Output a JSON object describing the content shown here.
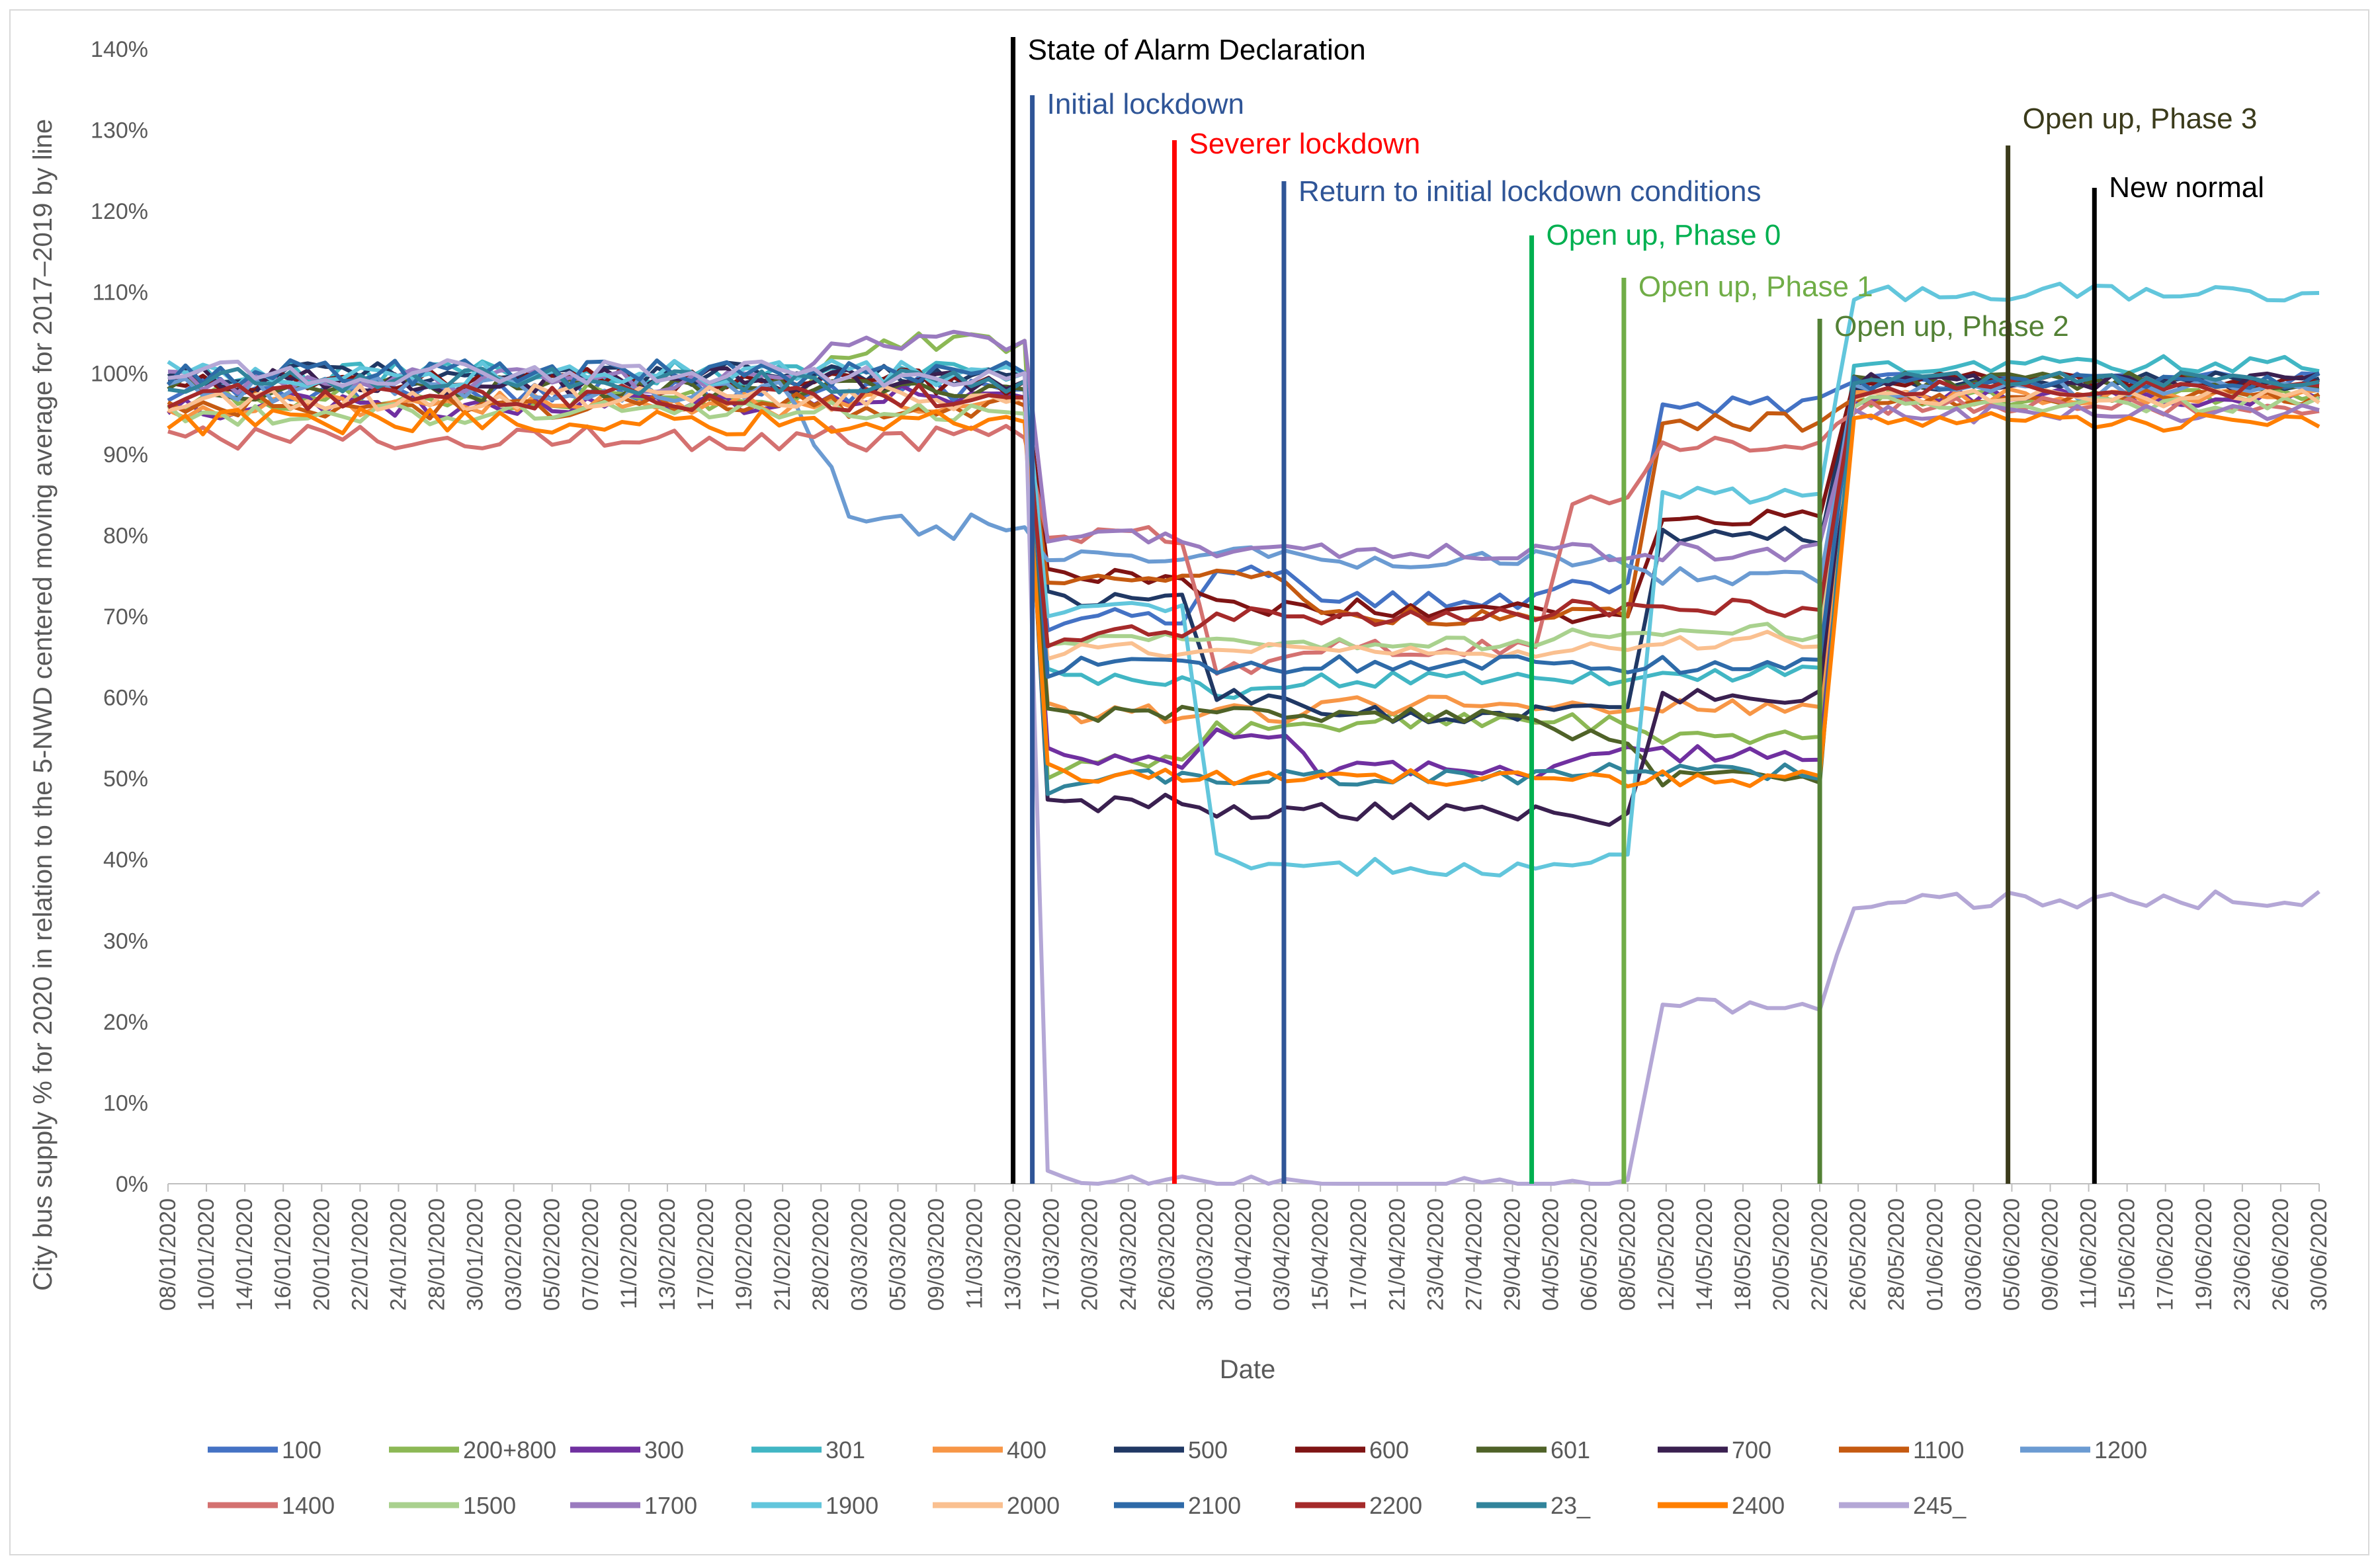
{
  "chart_data": {
    "type": "line",
    "title": "",
    "xlabel": "Date",
    "ylabel": "City bus supply % for 2020 in relation to the 5-NWD centered moving average for 2017–2019 by line",
    "ylim": [
      0,
      140
    ],
    "yticks": [
      "0%",
      "10%",
      "20%",
      "30%",
      "40%",
      "50%",
      "60%",
      "70%",
      "80%",
      "90%",
      "100%",
      "110%",
      "120%",
      "130%",
      "140%"
    ],
    "x_tick_labels": [
      "08/01/2020",
      "10/01/2020",
      "14/01/2020",
      "16/01/2020",
      "20/01/2020",
      "22/01/2020",
      "24/01/2020",
      "28/01/2020",
      "30/01/2020",
      "03/02/2020",
      "05/02/2020",
      "07/02/2020",
      "11/02/2020",
      "13/02/2020",
      "17/02/2020",
      "19/02/2020",
      "21/02/2020",
      "28/02/2020",
      "03/03/2020",
      "05/03/2020",
      "09/03/2020",
      "11/03/2020",
      "13/03/2020",
      "17/03/2020",
      "20/03/2020",
      "24/03/2020",
      "26/03/2020",
      "30/03/2020",
      "01/04/2020",
      "03/04/2020",
      "15/04/2020",
      "17/04/2020",
      "21/04/2020",
      "23/04/2020",
      "27/04/2020",
      "29/04/2020",
      "04/05/2020",
      "06/05/2020",
      "08/05/2020",
      "12/05/2020",
      "14/05/2020",
      "18/05/2020",
      "20/05/2020",
      "22/05/2020",
      "26/05/2020",
      "28/05/2020",
      "01/06/2020",
      "03/06/2020",
      "05/06/2020",
      "09/06/2020",
      "11/06/2020",
      "15/06/2020",
      "17/06/2020",
      "19/06/2020",
      "23/06/2020",
      "26/06/2020",
      "30/06/2020"
    ],
    "grid": false,
    "legend_position": "bottom",
    "events": [
      {
        "label": "State of Alarm Declaration",
        "x_index": 22,
        "color": "#000000"
      },
      {
        "label": "Initial lockdown",
        "x_index": 22.5,
        "color": "#2f5597"
      },
      {
        "label": "Severer lockdown",
        "x_index": 26.2,
        "color": "#ff0000"
      },
      {
        "label": "Return to initial lockdown conditions",
        "x_index": 29.05,
        "color": "#2f5597"
      },
      {
        "label": "Open up, Phase 0",
        "x_index": 35.5,
        "color": "#00b050"
      },
      {
        "label": "Open up, Phase 1",
        "x_index": 37.9,
        "color": "#70ad47"
      },
      {
        "label": "Open up, Phase 2",
        "x_index": 43,
        "color": "#538135"
      },
      {
        "label": "Open up, Phase 3",
        "x_index": 47.9,
        "color": "#3b3b1b"
      },
      {
        "label": "New normal",
        "x_index": 50.15,
        "color": "#000000"
      }
    ],
    "series": [
      {
        "name": "100",
        "color": "#4472c4",
        "segments": [
          98,
          98,
          70,
          76,
          72,
          74,
          96,
          99
        ]
      },
      {
        "name": "200+800",
        "color": "#8cb855",
        "segments": [
          97,
          104,
          52,
          56,
          57,
          57,
          55,
          97
        ]
      },
      {
        "name": "300",
        "color": "#7030a0",
        "segments": [
          96,
          97,
          52,
          56,
          51,
          53,
          53,
          97
        ]
      },
      {
        "name": "301",
        "color": "#41b6c4",
        "segments": [
          100,
          100,
          62,
          61,
          62,
          62,
          63,
          101
        ]
      },
      {
        "name": "400",
        "color": "#f79646",
        "segments": [
          96,
          96,
          58,
          58,
          59,
          59,
          59,
          97
        ]
      },
      {
        "name": "500",
        "color": "#203864",
        "segments": [
          100,
          100,
          72,
          60,
          58,
          58,
          80,
          99
        ]
      },
      {
        "name": "600",
        "color": "#7f1414",
        "segments": [
          99,
          99,
          75,
          71,
          71,
          70,
          82,
          99
        ]
      },
      {
        "name": "601",
        "color": "#4f6228",
        "segments": [
          98,
          98,
          58,
          58,
          58,
          55,
          50,
          99
        ]
      },
      {
        "name": "700",
        "color": "#3a2050",
        "segments": [
          99,
          99,
          47,
          46,
          46,
          45,
          60,
          99
        ]
      },
      {
        "name": "1100",
        "color": "#c55a11",
        "segments": [
          96,
          96,
          74,
          75,
          70,
          70,
          94,
          97
        ]
      },
      {
        "name": "1200",
        "color": "#6b9bd2",
        "segments": [
          98,
          81,
          77,
          78,
          77,
          77,
          75,
          98
        ]
      },
      {
        "name": "1400",
        "color": "#d47170",
        "segments": [
          92,
          92,
          80,
          64,
          66,
          84,
          91,
          96
        ]
      },
      {
        "name": "1500",
        "color": "#a9d18e",
        "segments": [
          95,
          95,
          67,
          67,
          67,
          68,
          68,
          96
        ]
      },
      {
        "name": "1700",
        "color": "#9a7bbf",
        "segments": [
          99,
          104,
          80,
          78,
          78,
          78,
          78,
          95
        ]
      },
      {
        "name": "1900",
        "color": "#62c6dc",
        "segments": [
          100,
          100,
          71,
          40,
          39,
          40,
          85,
          110
        ]
      },
      {
        "name": "2000",
        "color": "#fac090",
        "segments": [
          97,
          97,
          66,
          66,
          66,
          66,
          67,
          97
        ]
      },
      {
        "name": "2100",
        "color": "#2e6aa8",
        "segments": [
          100,
          100,
          64,
          64,
          64,
          64,
          64,
          99
        ]
      },
      {
        "name": "2200",
        "color": "#a52a2a",
        "segments": [
          97,
          97,
          68,
          70,
          70,
          71,
          71,
          98
        ]
      },
      {
        "name": "23_",
        "color": "#31849b",
        "segments": [
          99,
          99,
          50,
          50,
          50,
          51,
          51,
          99
        ]
      },
      {
        "name": "2400",
        "color": "#ff7f00",
        "segments": [
          94,
          94,
          50,
          50,
          50,
          50,
          50,
          94
        ]
      },
      {
        "name": "245_",
        "color": "#b4a7d6",
        "segments": [
          100,
          100,
          0,
          0,
          0,
          0,
          22,
          35
        ]
      }
    ]
  }
}
